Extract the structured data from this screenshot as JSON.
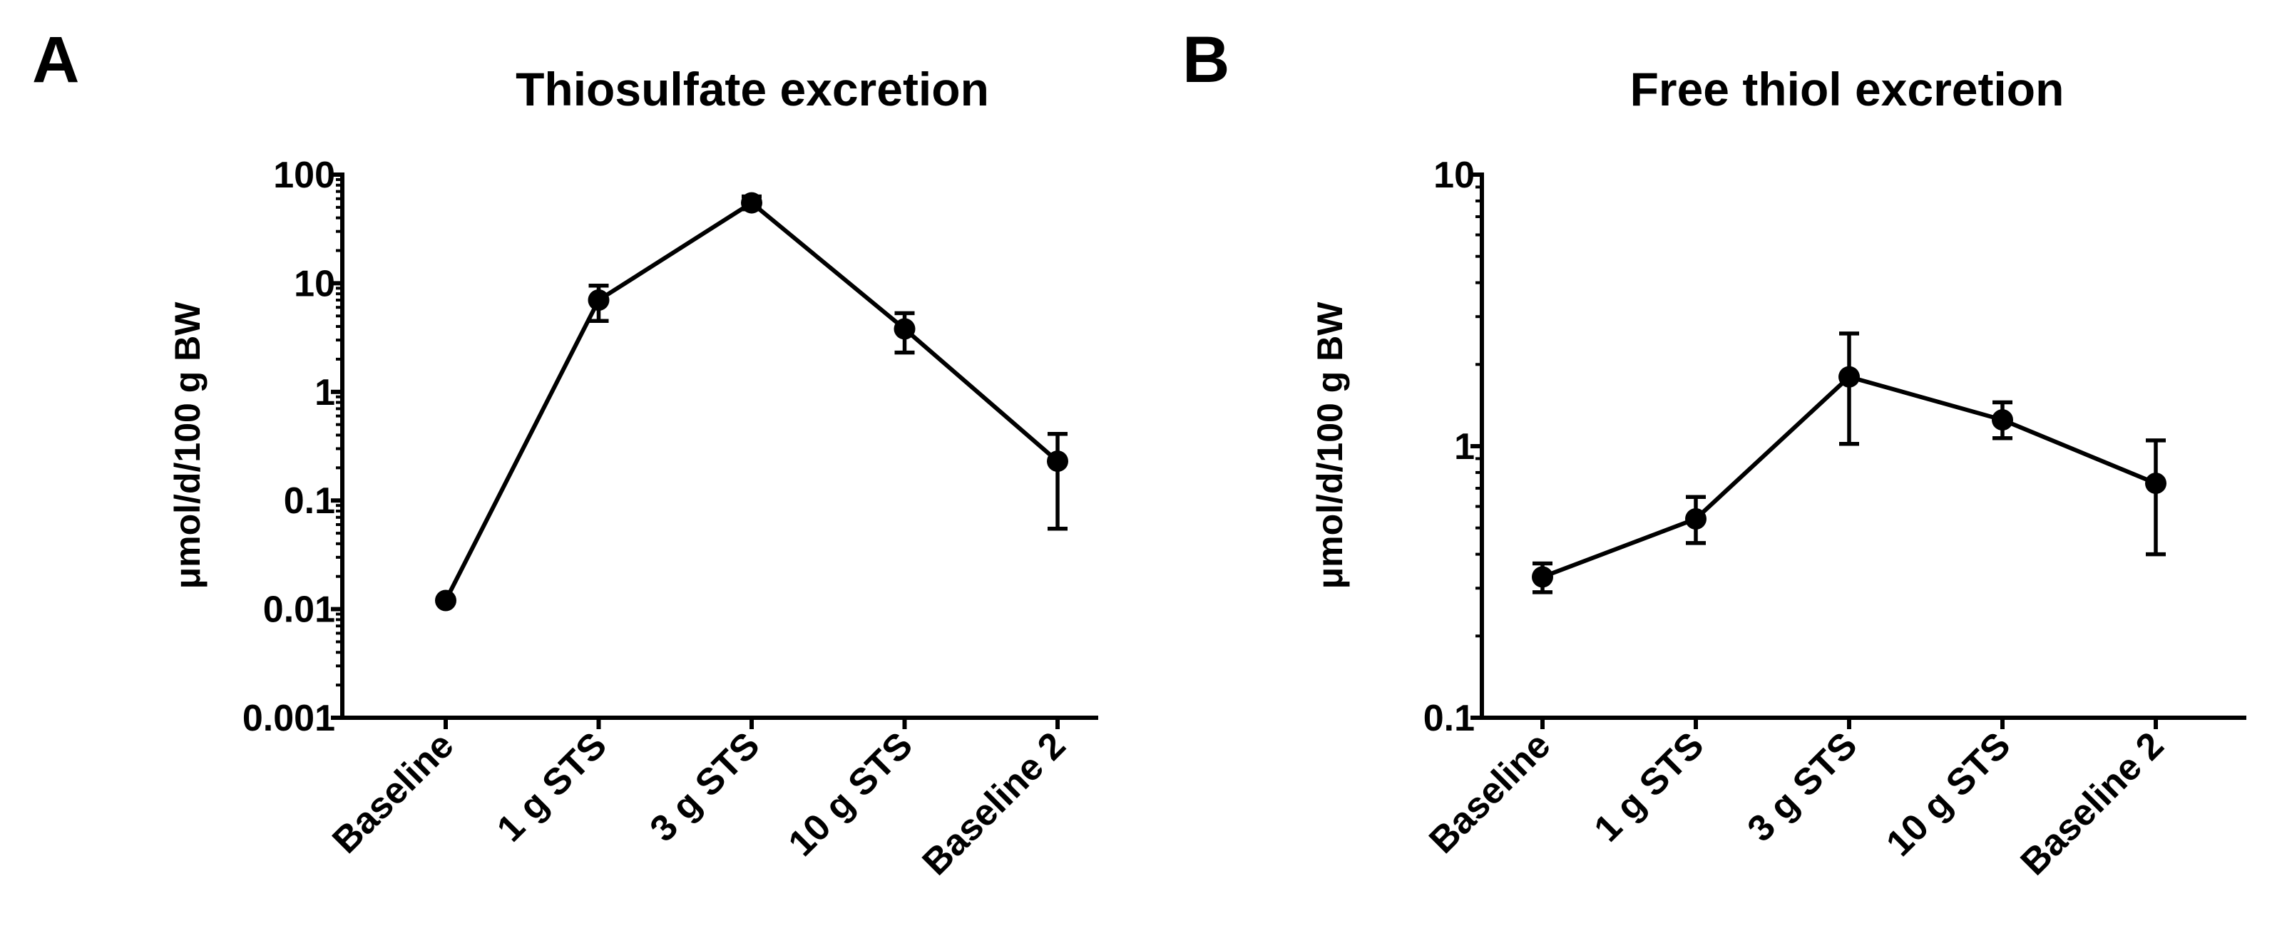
{
  "colors": {
    "ink": "#000000",
    "background": "#ffffff"
  },
  "chart_data": [
    {
      "panel": "A",
      "type": "line",
      "title": "Thiosulfate excretion",
      "xlabel": "",
      "ylabel": "μmol/d/100 g BW",
      "yscale": "log",
      "ylim": [
        0.001,
        100
      ],
      "yticks": [
        0.001,
        0.01,
        0.1,
        1,
        10,
        100
      ],
      "ytick_labels": [
        "0.001",
        "0.01",
        "0.1",
        "1",
        "10",
        "100"
      ],
      "categories": [
        "Baseline",
        "1 g STS",
        "3 g STS",
        "10 g STS",
        "Baseline 2"
      ],
      "series": [
        {
          "name": "Thiosulfate",
          "values": [
            0.012,
            7.0,
            55.0,
            3.8,
            0.23
          ],
          "err_low": [
            0.012,
            4.5,
            48.0,
            2.3,
            0.055
          ],
          "err_high": [
            0.012,
            9.5,
            63.0,
            5.3,
            0.41
          ]
        }
      ]
    },
    {
      "panel": "B",
      "type": "line",
      "title": "Free thiol excretion",
      "xlabel": "",
      "ylabel": "μmol/d/100 g BW",
      "yscale": "log",
      "ylim": [
        0.1,
        10
      ],
      "yticks": [
        0.1,
        1,
        10
      ],
      "ytick_labels": [
        "0.1",
        "1",
        "10"
      ],
      "categories": [
        "Baseline",
        "1 g STS",
        "3 g STS",
        "10 g STS",
        "Baseline 2"
      ],
      "series": [
        {
          "name": "Free thiol",
          "values": [
            0.33,
            0.54,
            1.8,
            1.25,
            0.73
          ],
          "err_low": [
            0.29,
            0.44,
            1.02,
            1.07,
            0.4
          ],
          "err_high": [
            0.37,
            0.65,
            2.6,
            1.45,
            1.05
          ]
        }
      ]
    }
  ]
}
